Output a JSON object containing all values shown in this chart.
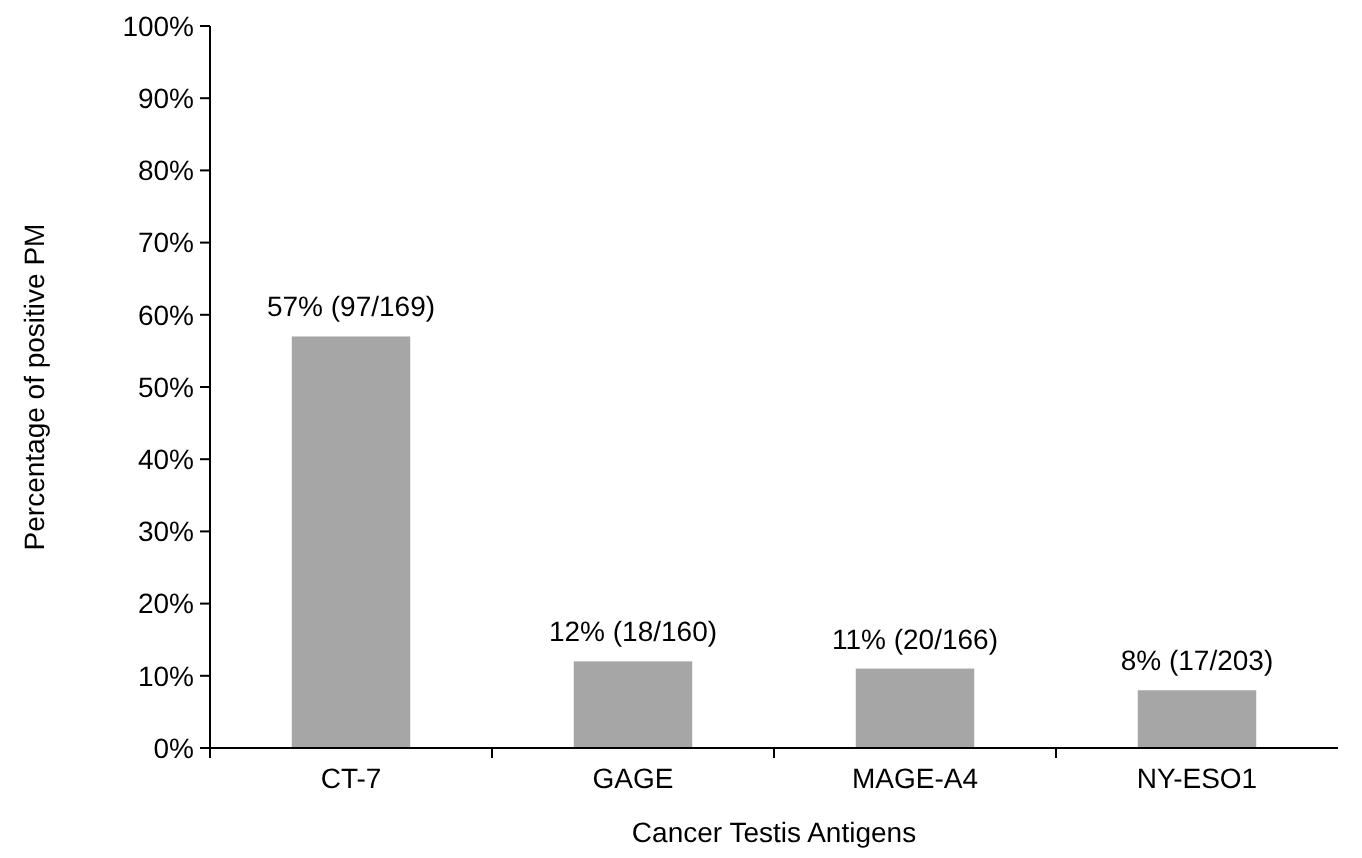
{
  "chart_data": {
    "type": "bar",
    "xlabel": "Cancer Testis Antigens",
    "ylabel": "Percentage of positive PM",
    "categories": [
      "CT-7",
      "GAGE",
      "MAGE-A4",
      "NY-ESO1"
    ],
    "values": [
      57,
      12,
      11,
      8
    ],
    "value_labels": [
      "57% (97/169)",
      "12% (18/160)",
      "11% (20/166)",
      "8% (17/203)"
    ],
    "color": "#a6a6a6",
    "ylim": [
      0,
      100
    ],
    "yticks": [
      {
        "value": 0,
        "label": "0%"
      },
      {
        "value": 10,
        "label": "10%"
      },
      {
        "value": 20,
        "label": "20%"
      },
      {
        "value": 30,
        "label": "30%"
      },
      {
        "value": 40,
        "label": "40%"
      },
      {
        "value": 50,
        "label": "50%"
      },
      {
        "value": 60,
        "label": "60%"
      },
      {
        "value": 70,
        "label": "70%"
      },
      {
        "value": 80,
        "label": "80%"
      },
      {
        "value": 90,
        "label": "90%"
      },
      {
        "value": 100,
        "label": "100%"
      }
    ],
    "grid": false
  }
}
